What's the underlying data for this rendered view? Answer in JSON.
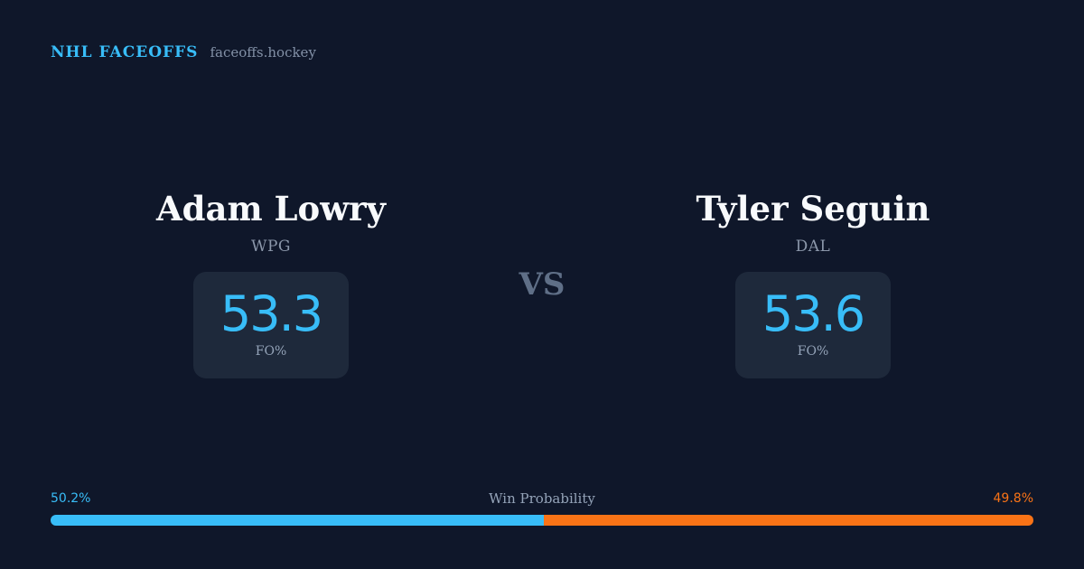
{
  "brand": {
    "name": "NHL FACEOFFS",
    "domain": "faceoffs.hockey"
  },
  "players": [
    {
      "name": "Adam Lowry",
      "team": "WPG",
      "fo_value": "53.3",
      "fo_label": "FO%"
    },
    {
      "name": "Tyler Seguin",
      "team": "DAL",
      "fo_value": "53.6",
      "fo_label": "FO%"
    }
  ],
  "vs_label": "VS",
  "win_probability": {
    "title": "Win Probability",
    "left_label": "50.2%",
    "right_label": "49.8%",
    "left_fraction": 0.502,
    "right_fraction": 0.498
  },
  "colors": {
    "background": "#0f172a",
    "card": "#1e293b",
    "accent_blue": "#38bdf8",
    "accent_orange": "#f97316",
    "muted_text": "#94a3b8",
    "name_text": "#f8fafc"
  }
}
